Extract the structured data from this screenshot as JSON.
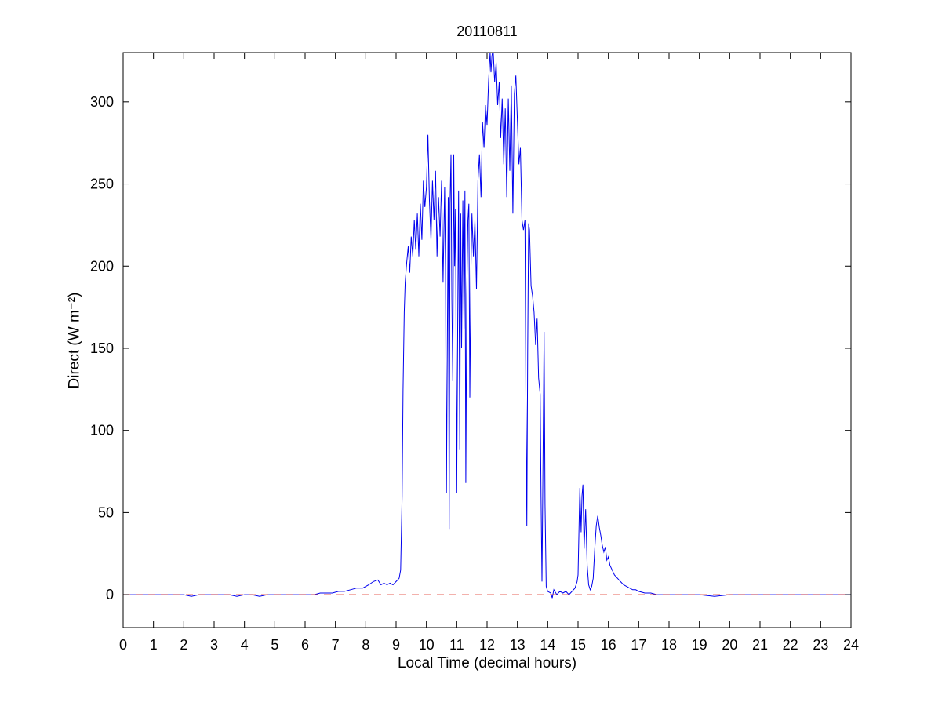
{
  "figure": {
    "background": "#ffffff"
  },
  "chart_data": {
    "type": "line",
    "title": "20110811",
    "xlabel": "Local Time (decimal hours)",
    "ylabel": "Direct (W m⁻²)",
    "xlim": [
      0,
      24
    ],
    "ylim": [
      -20,
      330
    ],
    "x_ticks": [
      0,
      1,
      2,
      3,
      4,
      5,
      6,
      7,
      8,
      9,
      10,
      11,
      12,
      13,
      14,
      15,
      16,
      17,
      18,
      19,
      20,
      21,
      22,
      23,
      24
    ],
    "y_ticks": [
      0,
      50,
      100,
      150,
      200,
      250,
      300
    ],
    "grid": false,
    "legend": "none",
    "axis_color": "#000000",
    "series": [
      {
        "name": "direct-irradiance",
        "color": "#0000ee",
        "style": "solid",
        "points": [
          [
            0,
            0
          ],
          [
            0.25,
            0
          ],
          [
            0.5,
            0
          ],
          [
            0.75,
            0
          ],
          [
            1,
            0
          ],
          [
            1.25,
            0
          ],
          [
            1.5,
            0
          ],
          [
            1.75,
            0
          ],
          [
            2,
            0
          ],
          [
            2.25,
            -1
          ],
          [
            2.5,
            0
          ],
          [
            3,
            0
          ],
          [
            3.25,
            0
          ],
          [
            3.5,
            0
          ],
          [
            3.75,
            -1
          ],
          [
            4,
            0
          ],
          [
            4.25,
            0
          ],
          [
            4.5,
            -1
          ],
          [
            4.75,
            0
          ],
          [
            5,
            0
          ],
          [
            5.5,
            0
          ],
          [
            6,
            0
          ],
          [
            6.3,
            0
          ],
          [
            6.5,
            1
          ],
          [
            6.7,
            1
          ],
          [
            6.9,
            1
          ],
          [
            7.1,
            2
          ],
          [
            7.3,
            2
          ],
          [
            7.5,
            3
          ],
          [
            7.7,
            4
          ],
          [
            7.9,
            4
          ],
          [
            8.1,
            6
          ],
          [
            8.25,
            8
          ],
          [
            8.4,
            9
          ],
          [
            8.5,
            6
          ],
          [
            8.6,
            7
          ],
          [
            8.7,
            6
          ],
          [
            8.8,
            7
          ],
          [
            8.9,
            6
          ],
          [
            9.0,
            8
          ],
          [
            9.1,
            10
          ],
          [
            9.15,
            15
          ],
          [
            9.2,
            60
          ],
          [
            9.23,
            125
          ],
          [
            9.27,
            172
          ],
          [
            9.3,
            190
          ],
          [
            9.35,
            202
          ],
          [
            9.4,
            212
          ],
          [
            9.45,
            196
          ],
          [
            9.5,
            218
          ],
          [
            9.55,
            206
          ],
          [
            9.6,
            228
          ],
          [
            9.65,
            210
          ],
          [
            9.7,
            232
          ],
          [
            9.75,
            206
          ],
          [
            9.8,
            238
          ],
          [
            9.85,
            216
          ],
          [
            9.9,
            252
          ],
          [
            9.95,
            236
          ],
          [
            10.0,
            248
          ],
          [
            10.05,
            280
          ],
          [
            10.1,
            240
          ],
          [
            10.15,
            216
          ],
          [
            10.2,
            252
          ],
          [
            10.25,
            228
          ],
          [
            10.3,
            258
          ],
          [
            10.35,
            206
          ],
          [
            10.4,
            242
          ],
          [
            10.45,
            218
          ],
          [
            10.5,
            252
          ],
          [
            10.55,
            190
          ],
          [
            10.6,
            248
          ],
          [
            10.63,
            200
          ],
          [
            10.66,
            62
          ],
          [
            10.69,
            150
          ],
          [
            10.72,
            242
          ],
          [
            10.75,
            40
          ],
          [
            10.78,
            238
          ],
          [
            10.81,
            268
          ],
          [
            10.84,
            180
          ],
          [
            10.87,
            130
          ],
          [
            10.9,
            268
          ],
          [
            10.93,
            200
          ],
          [
            10.96,
            235
          ],
          [
            11.0,
            62
          ],
          [
            11.03,
            160
          ],
          [
            11.06,
            246
          ],
          [
            11.1,
            88
          ],
          [
            11.13,
            232
          ],
          [
            11.16,
            150
          ],
          [
            11.2,
            240
          ],
          [
            11.24,
            162
          ],
          [
            11.27,
            246
          ],
          [
            11.3,
            68
          ],
          [
            11.33,
            182
          ],
          [
            11.37,
            228
          ],
          [
            11.4,
            238
          ],
          [
            11.43,
            120
          ],
          [
            11.47,
            200
          ],
          [
            11.5,
            232
          ],
          [
            11.55,
            206
          ],
          [
            11.6,
            228
          ],
          [
            11.65,
            186
          ],
          [
            11.7,
            252
          ],
          [
            11.75,
            268
          ],
          [
            11.8,
            242
          ],
          [
            11.85,
            288
          ],
          [
            11.9,
            272
          ],
          [
            11.95,
            298
          ],
          [
            12.0,
            286
          ],
          [
            12.05,
            312
          ],
          [
            12.1,
            330
          ],
          [
            12.13,
            318
          ],
          [
            12.16,
            328
          ],
          [
            12.2,
            332
          ],
          [
            12.25,
            312
          ],
          [
            12.3,
            324
          ],
          [
            12.35,
            298
          ],
          [
            12.4,
            312
          ],
          [
            12.45,
            278
          ],
          [
            12.5,
            302
          ],
          [
            12.55,
            262
          ],
          [
            12.6,
            296
          ],
          [
            12.65,
            242
          ],
          [
            12.7,
            302
          ],
          [
            12.75,
            258
          ],
          [
            12.8,
            310
          ],
          [
            12.85,
            232
          ],
          [
            12.9,
            305
          ],
          [
            12.95,
            316
          ],
          [
            13.0,
            288
          ],
          [
            13.05,
            262
          ],
          [
            13.1,
            272
          ],
          [
            13.15,
            228
          ],
          [
            13.2,
            222
          ],
          [
            13.25,
            228
          ],
          [
            13.28,
            120
          ],
          [
            13.31,
            42
          ],
          [
            13.34,
            150
          ],
          [
            13.37,
            226
          ],
          [
            13.4,
            222
          ],
          [
            13.45,
            188
          ],
          [
            13.5,
            182
          ],
          [
            13.55,
            172
          ],
          [
            13.6,
            152
          ],
          [
            13.65,
            168
          ],
          [
            13.7,
            132
          ],
          [
            13.75,
            122
          ],
          [
            13.78,
            60
          ],
          [
            13.81,
            8
          ],
          [
            13.85,
            92
          ],
          [
            13.88,
            160
          ],
          [
            13.91,
            55
          ],
          [
            13.95,
            5
          ],
          [
            14.0,
            2
          ],
          [
            14.1,
            1
          ],
          [
            14.15,
            -2
          ],
          [
            14.2,
            3
          ],
          [
            14.3,
            0
          ],
          [
            14.4,
            2
          ],
          [
            14.5,
            1
          ],
          [
            14.6,
            2
          ],
          [
            14.7,
            0
          ],
          [
            14.8,
            2
          ],
          [
            14.9,
            4
          ],
          [
            14.97,
            8
          ],
          [
            15.0,
            12
          ],
          [
            15.03,
            40
          ],
          [
            15.06,
            65
          ],
          [
            15.1,
            38
          ],
          [
            15.13,
            60
          ],
          [
            15.16,
            67
          ],
          [
            15.2,
            28
          ],
          [
            15.25,
            52
          ],
          [
            15.3,
            18
          ],
          [
            15.35,
            6
          ],
          [
            15.4,
            3
          ],
          [
            15.45,
            5
          ],
          [
            15.5,
            10
          ],
          [
            15.55,
            28
          ],
          [
            15.6,
            42
          ],
          [
            15.65,
            48
          ],
          [
            15.7,
            41
          ],
          [
            15.75,
            36
          ],
          [
            15.8,
            30
          ],
          [
            15.85,
            26
          ],
          [
            15.9,
            29
          ],
          [
            15.95,
            21
          ],
          [
            16.0,
            23
          ],
          [
            16.05,
            18
          ],
          [
            16.1,
            16
          ],
          [
            16.2,
            12
          ],
          [
            16.3,
            10
          ],
          [
            16.4,
            8
          ],
          [
            16.5,
            6
          ],
          [
            16.6,
            5
          ],
          [
            16.7,
            4
          ],
          [
            16.8,
            3
          ],
          [
            16.9,
            3
          ],
          [
            17.0,
            2
          ],
          [
            17.2,
            1
          ],
          [
            17.4,
            1
          ],
          [
            17.6,
            0
          ],
          [
            17.8,
            0
          ],
          [
            18.0,
            0
          ],
          [
            18.25,
            0
          ],
          [
            18.5,
            0
          ],
          [
            19.0,
            0
          ],
          [
            19.5,
            -1
          ],
          [
            20.0,
            0
          ],
          [
            20.5,
            0
          ],
          [
            21.0,
            0
          ],
          [
            21.5,
            0
          ],
          [
            22.0,
            0
          ],
          [
            22.5,
            0
          ],
          [
            23.0,
            0
          ],
          [
            23.5,
            0
          ],
          [
            24.0,
            0
          ]
        ]
      },
      {
        "name": "zero-reference",
        "color": "#e03122",
        "style": "dashed",
        "points": [
          [
            0,
            0
          ],
          [
            24,
            0
          ]
        ]
      }
    ]
  }
}
